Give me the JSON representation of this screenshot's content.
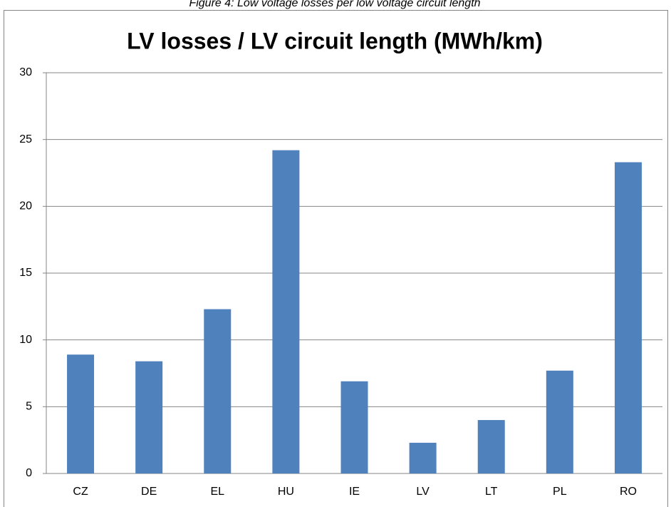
{
  "caption": "Figure 4: Low voltage losses per low voltage circuit length",
  "chart_data": {
    "type": "bar",
    "title": "LV losses / LV circuit length (MWh/km)",
    "categories": [
      "CZ",
      "DE",
      "EL",
      "HU",
      "IE",
      "LV",
      "LT",
      "PL",
      "RO"
    ],
    "values": [
      8.9,
      8.4,
      12.3,
      24.2,
      6.9,
      2.3,
      4.0,
      7.7,
      23.3
    ],
    "color": "#4f81bd",
    "ylim": [
      0,
      30
    ],
    "yticks": [
      0,
      5,
      10,
      15,
      20,
      25,
      30
    ],
    "grid": true
  }
}
